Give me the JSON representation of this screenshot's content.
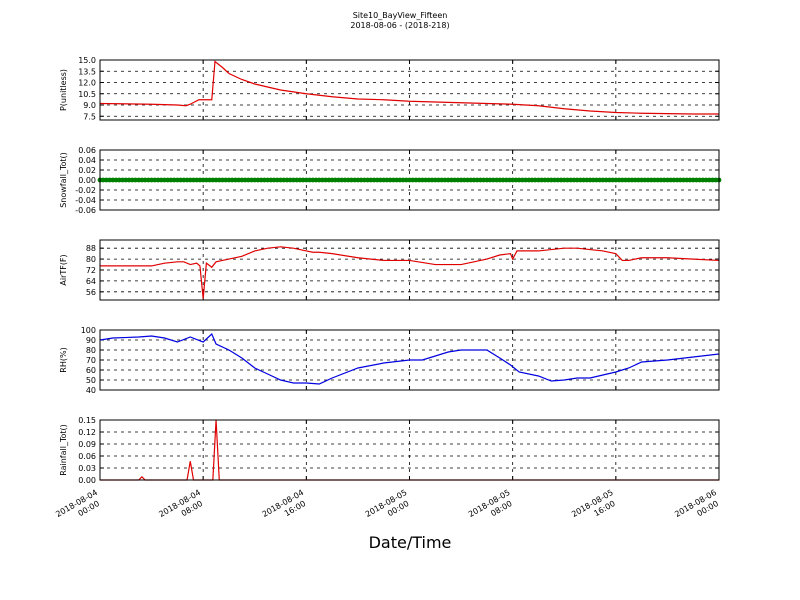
{
  "chart_data": {
    "type": "line",
    "title": "Site10_BayView_Fifteen",
    "subtitle": "2018-08-06 - (2018-218)",
    "xlabel": "Date/Time",
    "x_ticks": [
      {
        "t": 0,
        "line1": "2018-08-04",
        "line2": "00:00"
      },
      {
        "t": 8,
        "line1": "2018-08-04",
        "line2": "08:00"
      },
      {
        "t": 16,
        "line1": "2018-08-04",
        "line2": "16:00"
      },
      {
        "t": 24,
        "line1": "2018-08-05",
        "line2": "00:00"
      },
      {
        "t": 32,
        "line1": "2018-08-05",
        "line2": "08:00"
      },
      {
        "t": 40,
        "line1": "2018-08-05",
        "line2": "16:00"
      },
      {
        "t": 48,
        "line1": "2018-08-06",
        "line2": "00:00"
      }
    ],
    "x_range": [
      "2018-08-04 00:00",
      "2018-08-06 00:00"
    ],
    "grid": true,
    "panels": [
      {
        "ylabel": "P(unitless)",
        "ylim": [
          7.0,
          15.0
        ],
        "yticks": [
          "7.5",
          "9.0",
          "10.5",
          "12.0",
          "13.5",
          "15.0"
        ],
        "color": "#e00000",
        "style": "line",
        "series": {
          "x": [
            "2018-08-04 00:00",
            "2018-08-04 04:00",
            "2018-08-04 06:00",
            "2018-08-04 06:40",
            "2018-08-04 07:00",
            "2018-08-04 07:40",
            "2018-08-04 08:20",
            "2018-08-04 08:40",
            "2018-08-04 08:55",
            "2018-08-04 09:30",
            "2018-08-04 10:00",
            "2018-08-04 11:00",
            "2018-08-04 12:00",
            "2018-08-04 14:00",
            "2018-08-04 16:00",
            "2018-08-04 18:00",
            "2018-08-04 20:00",
            "2018-08-04 22:00",
            "2018-08-05 00:00",
            "2018-08-05 04:00",
            "2018-08-05 08:00",
            "2018-08-05 10:00",
            "2018-08-05 12:00",
            "2018-08-05 14:00",
            "2018-08-05 16:00",
            "2018-08-05 18:00",
            "2018-08-05 20:00",
            "2018-08-05 22:00",
            "2018-08-06 00:00"
          ],
          "y": [
            9.2,
            9.1,
            9.0,
            8.9,
            9.1,
            9.7,
            9.7,
            9.7,
            14.8,
            14.0,
            13.2,
            12.4,
            11.8,
            11.0,
            10.5,
            10.1,
            9.8,
            9.7,
            9.5,
            9.3,
            9.1,
            8.9,
            8.5,
            8.2,
            8.0,
            7.9,
            7.85,
            7.8,
            7.8
          ]
        }
      },
      {
        "ylabel": "Snowfall_Tot()",
        "ylim": [
          -0.06,
          0.06
        ],
        "yticks": [
          "-0.06",
          "-0.04",
          "-0.02",
          "0.00",
          "0.02",
          "0.04",
          "0.06"
        ],
        "color": "#008000",
        "style": "markers",
        "series": {
          "x": [
            "2018-08-04 00:00",
            "2018-08-06 00:00"
          ],
          "y": [
            0.0,
            0.0
          ],
          "note": "constant 0.00 every interval"
        }
      },
      {
        "ylabel": "AirTF(F)",
        "ylim": [
          50,
          94
        ],
        "yticks": [
          "56",
          "64",
          "72",
          "80",
          "88"
        ],
        "color": "#e00000",
        "style": "line",
        "series": {
          "x": [
            "2018-08-04 00:00",
            "2018-08-04 03:00",
            "2018-08-04 04:00",
            "2018-08-04 05:00",
            "2018-08-04 06:00",
            "2018-08-04 06:30",
            "2018-08-04 07:00",
            "2018-08-04 07:30",
            "2018-08-04 07:45",
            "2018-08-04 08:00",
            "2018-08-04 08:15",
            "2018-08-04 08:40",
            "2018-08-04 09:00",
            "2018-08-04 10:00",
            "2018-08-04 11:00",
            "2018-08-04 12:00",
            "2018-08-04 13:00",
            "2018-08-04 14:00",
            "2018-08-04 15:00",
            "2018-08-04 16:00",
            "2018-08-04 16:30",
            "2018-08-04 17:00",
            "2018-08-04 18:00",
            "2018-08-04 20:00",
            "2018-08-04 22:00",
            "2018-08-05 00:00",
            "2018-08-05 02:00",
            "2018-08-05 04:00",
            "2018-08-05 06:00",
            "2018-08-05 07:00",
            "2018-08-05 07:50",
            "2018-08-05 08:00",
            "2018-08-05 08:20",
            "2018-08-05 10:00",
            "2018-08-05 12:00",
            "2018-08-05 13:00",
            "2018-08-05 14:00",
            "2018-08-05 15:00",
            "2018-08-05 16:00",
            "2018-08-05 16:30",
            "2018-08-05 17:00",
            "2018-08-05 18:00",
            "2018-08-05 20:00",
            "2018-08-05 22:00",
            "2018-08-06 00:00"
          ],
          "y": [
            75,
            75,
            75,
            77,
            78,
            78,
            76,
            77,
            75,
            51,
            77,
            74,
            78,
            80,
            82,
            86,
            88,
            89,
            88,
            86,
            85,
            85,
            84,
            81,
            79,
            79,
            76,
            76,
            80,
            83,
            84,
            80,
            86,
            86,
            88,
            88,
            87,
            86,
            84,
            79,
            79,
            81,
            81,
            80,
            79
          ]
        }
      },
      {
        "ylabel": "RH(%)",
        "ylim": [
          40,
          100
        ],
        "yticks": [
          "40",
          "50",
          "60",
          "70",
          "80",
          "90",
          "100"
        ],
        "color": "#0000e0",
        "style": "line",
        "series": {
          "x": [
            "2018-08-04 00:00",
            "2018-08-04 01:00",
            "2018-08-04 03:00",
            "2018-08-04 04:00",
            "2018-08-04 05:00",
            "2018-08-04 06:00",
            "2018-08-04 07:00",
            "2018-08-04 08:00",
            "2018-08-04 08:40",
            "2018-08-04 09:00",
            "2018-08-04 10:00",
            "2018-08-04 11:00",
            "2018-08-04 12:00",
            "2018-08-04 13:00",
            "2018-08-04 14:00",
            "2018-08-04 15:00",
            "2018-08-04 16:00",
            "2018-08-04 17:00",
            "2018-08-04 18:00",
            "2018-08-04 20:00",
            "2018-08-04 22:00",
            "2018-08-05 00:00",
            "2018-08-05 01:00",
            "2018-08-05 03:00",
            "2018-08-05 04:00",
            "2018-08-05 05:00",
            "2018-08-05 06:00",
            "2018-08-05 07:00",
            "2018-08-05 07:50",
            "2018-08-05 08:30",
            "2018-08-05 10:00",
            "2018-08-05 11:00",
            "2018-08-05 12:00",
            "2018-08-05 13:00",
            "2018-08-05 14:00",
            "2018-08-05 15:00",
            "2018-08-05 16:00",
            "2018-08-05 17:00",
            "2018-08-05 18:00",
            "2018-08-05 20:00",
            "2018-08-05 22:00",
            "2018-08-06 00:00"
          ],
          "y": [
            90,
            92,
            93,
            94,
            92,
            88,
            93,
            88,
            96,
            86,
            80,
            72,
            62,
            56,
            50,
            47,
            47,
            46,
            52,
            62,
            67,
            70,
            70,
            78,
            80,
            80,
            80,
            72,
            65,
            58,
            54,
            49,
            50,
            52,
            52,
            55,
            58,
            62,
            68,
            70,
            73,
            76
          ]
        }
      },
      {
        "ylabel": "Rainfall_Tot()",
        "ylim": [
          0.0,
          0.15
        ],
        "yticks": [
          "0.00",
          "0.03",
          "0.06",
          "0.09",
          "0.12",
          "0.15"
        ],
        "color": "#e00000",
        "style": "line",
        "series": {
          "x": [
            "2018-08-04 00:00",
            "2018-08-04 03:00",
            "2018-08-04 03:15",
            "2018-08-04 03:30",
            "2018-08-04 06:45",
            "2018-08-04 07:00",
            "2018-08-04 07:15",
            "2018-08-04 08:45",
            "2018-08-04 09:00",
            "2018-08-04 09:15",
            "2018-08-04 09:30",
            "2018-08-06 00:00"
          ],
          "y": [
            0.0,
            0.0,
            0.008,
            0.0,
            0.0,
            0.047,
            0.0,
            0.0,
            0.15,
            0.0,
            0.0,
            0.0
          ]
        }
      }
    ]
  }
}
